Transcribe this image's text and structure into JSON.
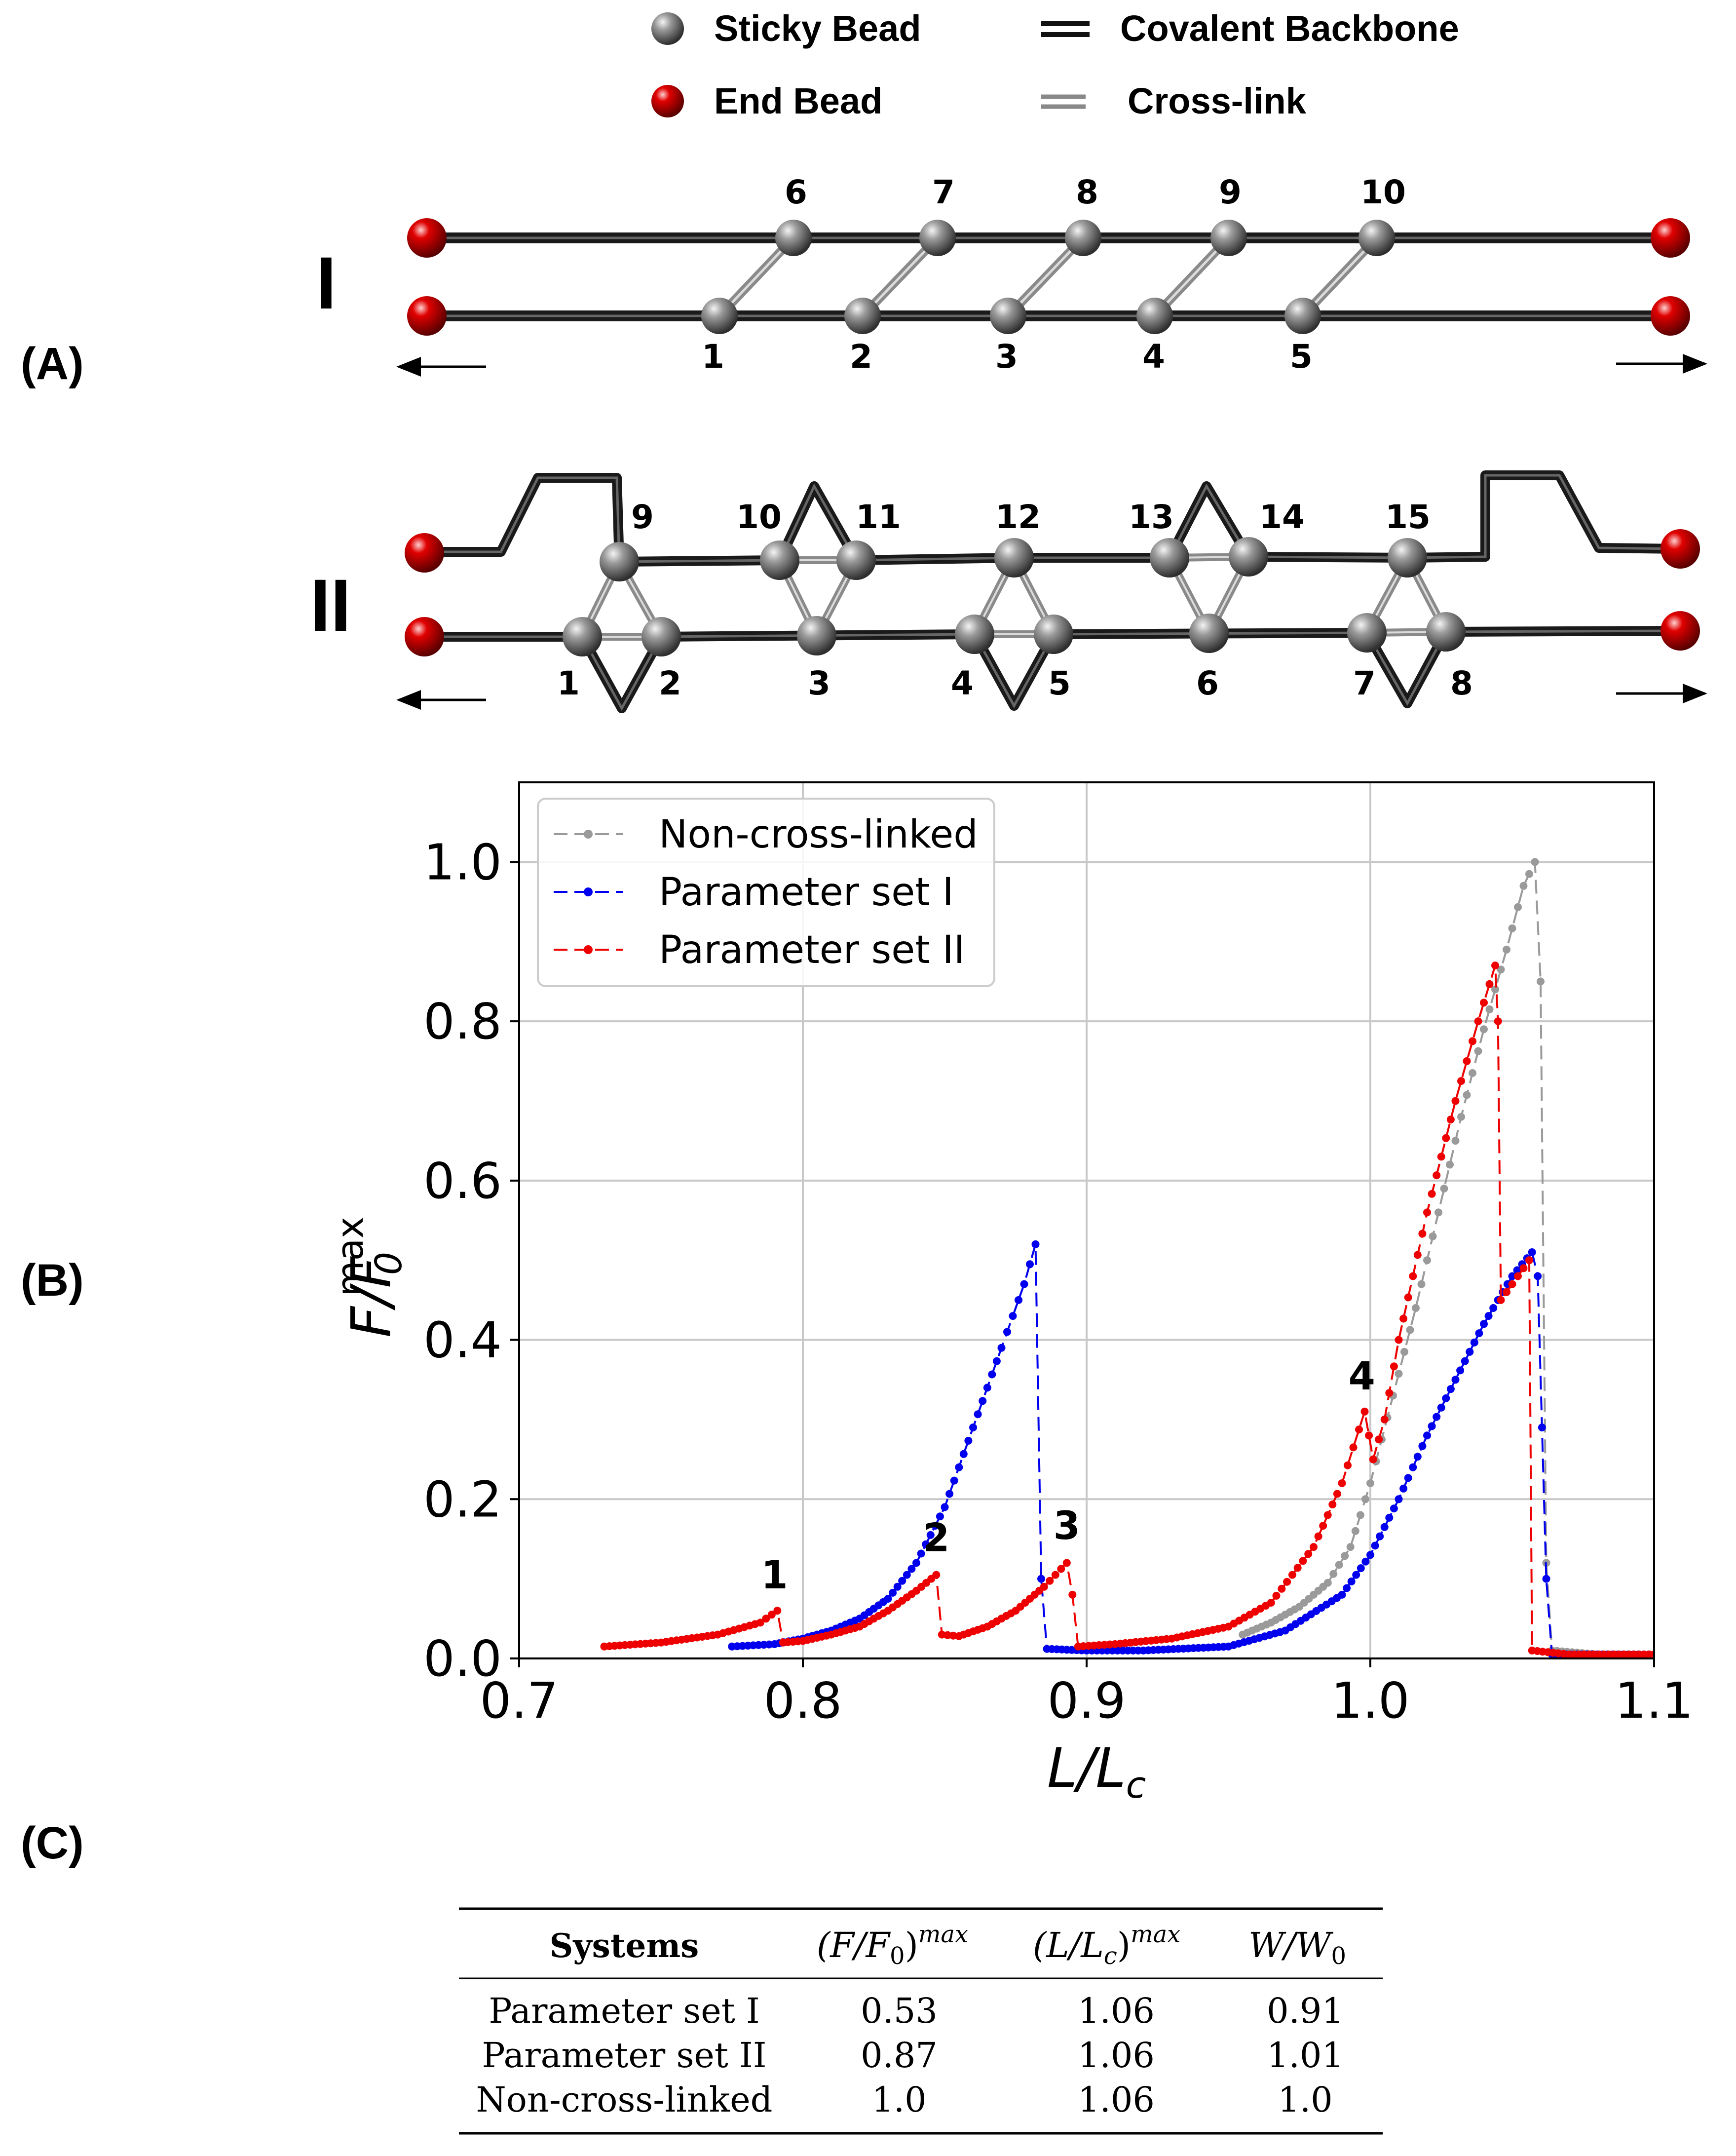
{
  "panels": {
    "a": "(A)",
    "b": "(B)",
    "c": "(C)"
  },
  "top_legend": {
    "sticky": "Sticky Bead",
    "end": "End Bead",
    "backbone": "Covalent Backbone",
    "crosslink": "Cross-link"
  },
  "schematic": {
    "structure_I": "I",
    "structure_II": "II",
    "I_top_numbers": [
      "6",
      "7",
      "8",
      "9",
      "10"
    ],
    "I_bottom_numbers": [
      "1",
      "2",
      "3",
      "4",
      "5"
    ],
    "II_top_numbers": [
      "9",
      "10",
      "11",
      "12",
      "13",
      "14",
      "15"
    ],
    "II_bottom_numbers": [
      "1",
      "2",
      "3",
      "4",
      "5",
      "6",
      "7",
      "8"
    ]
  },
  "colors": {
    "non_cross_linked": "#9a9a9a",
    "set_I": "#0000ee",
    "set_II": "#ee0000",
    "grid": "#c8c8c8",
    "bead_gray": "#7f7f7f",
    "bead_red": "#d10000"
  },
  "chart_data": {
    "type": "line",
    "xlabel": "L/L",
    "xlabel_sub": "c",
    "ylabel": "F/F",
    "ylabel_sub": "0",
    "ylabel_sup": "max",
    "xlim": [
      0.7,
      1.1
    ],
    "ylim": [
      0.0,
      1.1
    ],
    "xticks": [
      "0.7",
      "0.8",
      "0.9",
      "1.0",
      "1.1"
    ],
    "yticks": [
      "0.0",
      "0.2",
      "0.4",
      "0.6",
      "0.8",
      "1.0"
    ],
    "grid": true,
    "legend_position": "top-left",
    "series": [
      {
        "name": "Non-cross-linked",
        "key": "non_cross_linked",
        "points": [
          [
            0.955,
            0.03
          ],
          [
            0.965,
            0.045
          ],
          [
            0.975,
            0.065
          ],
          [
            0.985,
            0.095
          ],
          [
            0.993,
            0.14
          ],
          [
            1.0,
            0.22
          ],
          [
            1.008,
            0.33
          ],
          [
            1.016,
            0.44
          ],
          [
            1.024,
            0.56
          ],
          [
            1.032,
            0.68
          ],
          [
            1.04,
            0.79
          ],
          [
            1.048,
            0.89
          ],
          [
            1.054,
            0.97
          ],
          [
            1.058,
            1.0
          ],
          [
            1.06,
            0.85
          ],
          [
            1.062,
            0.12
          ],
          [
            1.064,
            0.01
          ],
          [
            1.08,
            0.005
          ],
          [
            1.1,
            0.005
          ]
        ]
      },
      {
        "name": "Parameter set I",
        "key": "set_I",
        "points": [
          [
            0.775,
            0.015
          ],
          [
            0.79,
            0.018
          ],
          [
            0.8,
            0.025
          ],
          [
            0.81,
            0.035
          ],
          [
            0.82,
            0.05
          ],
          [
            0.83,
            0.075
          ],
          [
            0.84,
            0.12
          ],
          [
            0.85,
            0.19
          ],
          [
            0.86,
            0.29
          ],
          [
            0.87,
            0.39
          ],
          [
            0.878,
            0.47
          ],
          [
            0.882,
            0.52
          ],
          [
            0.884,
            0.1
          ],
          [
            0.886,
            0.012
          ],
          [
            0.9,
            0.01
          ],
          [
            0.92,
            0.01
          ],
          [
            0.95,
            0.015
          ],
          [
            0.97,
            0.035
          ],
          [
            0.99,
            0.08
          ],
          [
            1.0,
            0.13
          ],
          [
            1.01,
            0.2
          ],
          [
            1.02,
            0.28
          ],
          [
            1.03,
            0.35
          ],
          [
            1.04,
            0.42
          ],
          [
            1.05,
            0.48
          ],
          [
            1.057,
            0.51
          ],
          [
            1.059,
            0.48
          ],
          [
            1.062,
            0.1
          ],
          [
            1.064,
            0.005
          ],
          [
            1.08,
            0.005
          ],
          [
            1.1,
            0.005
          ]
        ]
      },
      {
        "name": "Parameter set II",
        "key": "set_II",
        "points": [
          [
            0.73,
            0.015
          ],
          [
            0.75,
            0.02
          ],
          [
            0.77,
            0.03
          ],
          [
            0.785,
            0.045
          ],
          [
            0.791,
            0.06
          ],
          [
            0.793,
            0.02
          ],
          [
            0.8,
            0.022
          ],
          [
            0.81,
            0.03
          ],
          [
            0.82,
            0.04
          ],
          [
            0.83,
            0.06
          ],
          [
            0.84,
            0.085
          ],
          [
            0.847,
            0.105
          ],
          [
            0.849,
            0.03
          ],
          [
            0.855,
            0.028
          ],
          [
            0.865,
            0.04
          ],
          [
            0.875,
            0.06
          ],
          [
            0.885,
            0.09
          ],
          [
            0.893,
            0.12
          ],
          [
            0.895,
            0.08
          ],
          [
            0.897,
            0.015
          ],
          [
            0.91,
            0.018
          ],
          [
            0.93,
            0.025
          ],
          [
            0.95,
            0.04
          ],
          [
            0.965,
            0.07
          ],
          [
            0.98,
            0.14
          ],
          [
            0.99,
            0.22
          ],
          [
            0.998,
            0.31
          ],
          [
            1.001,
            0.25
          ],
          [
            1.005,
            0.3
          ],
          [
            1.01,
            0.4
          ],
          [
            1.02,
            0.56
          ],
          [
            1.03,
            0.7
          ],
          [
            1.038,
            0.8
          ],
          [
            1.044,
            0.87
          ],
          [
            1.045,
            0.8
          ],
          [
            1.046,
            0.45
          ],
          [
            1.05,
            0.47
          ],
          [
            1.056,
            0.5
          ],
          [
            1.057,
            0.01
          ],
          [
            1.07,
            0.005
          ],
          [
            1.1,
            0.005
          ]
        ]
      }
    ],
    "annotations": [
      {
        "text": "1",
        "x": 0.79,
        "y": 0.06
      },
      {
        "text": "2",
        "x": 0.847,
        "y": 0.107
      },
      {
        "text": "3",
        "x": 0.893,
        "y": 0.122
      },
      {
        "text": "4",
        "x": 0.997,
        "y": 0.31
      }
    ]
  },
  "table": {
    "headers": [
      "Systems",
      "(F/F",
      "(L/L",
      "W/W"
    ],
    "rows": [
      [
        "Parameter set I",
        "0.53",
        "1.06",
        "0.91"
      ],
      [
        "Parameter set II",
        "0.87",
        "1.06",
        "1.01"
      ],
      [
        "Non-cross-linked",
        "1.0",
        "1.06",
        "1.0"
      ]
    ]
  }
}
